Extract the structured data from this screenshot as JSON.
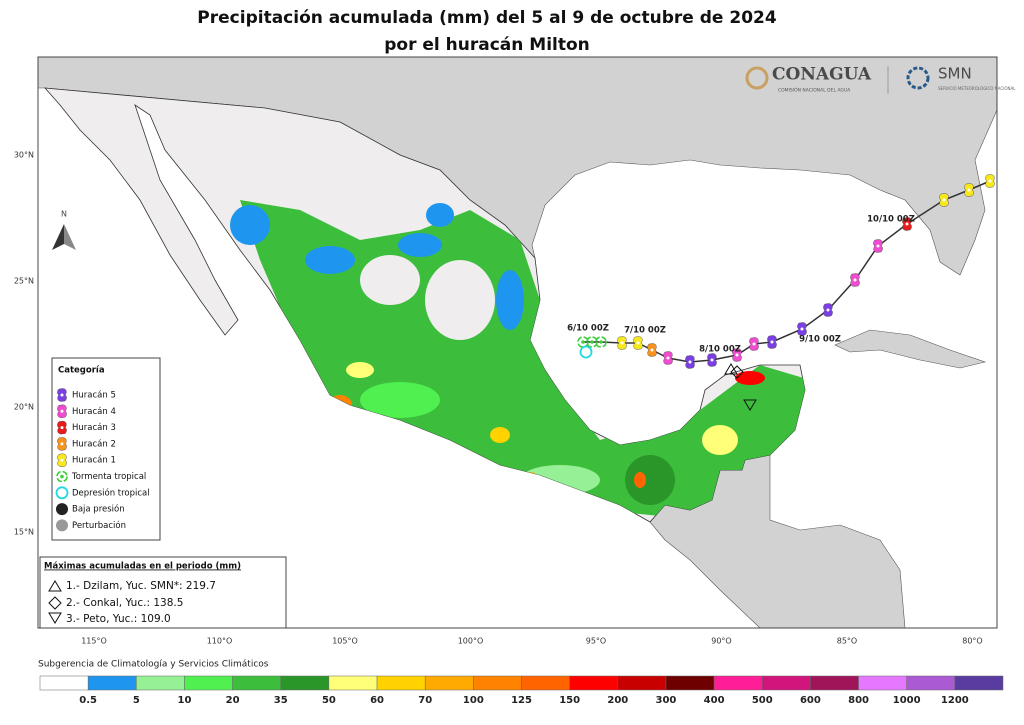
{
  "title": "Precipitación acumulada (mm) del 5 al 9 de octubre de 2024",
  "subtitle": "por el huracán Milton",
  "logos": {
    "conagua": "CONAGUA",
    "conagua_sub": "COMISIÓN NACIONAL DEL AGUA",
    "smn": "SMN",
    "smn_sub": "SERVICIO METEOROLÓGICO NACIONAL"
  },
  "map": {
    "north": "N",
    "lat_labels": [
      "30°N",
      "25°N",
      "20°N",
      "15°N"
    ],
    "lon_labels": [
      "115°O",
      "110°O",
      "105°O",
      "100°O",
      "95°O",
      "90°O",
      "85°O",
      "80°O"
    ],
    "track_labels": [
      "6/10 00Z",
      "7/10 00Z",
      "8/10 00Z",
      "9/10 00Z",
      "10/10 00Z"
    ]
  },
  "legend": {
    "title": "Categoría",
    "items": [
      {
        "label": "Huracán 5",
        "color": "#7b3fe4",
        "marker": "hurricane"
      },
      {
        "label": "Huracán 4",
        "color": "#f04ccf",
        "marker": "hurricane"
      },
      {
        "label": "Huracán 3",
        "color": "#e81c1c",
        "marker": "hurricane"
      },
      {
        "label": "Huracán 2",
        "color": "#f7931e",
        "marker": "hurricane"
      },
      {
        "label": "Huracán 1",
        "color": "#f7e81e",
        "marker": "hurricane"
      },
      {
        "label": "Tormenta tropical",
        "color": "#3ccf3c",
        "marker": "storm"
      },
      {
        "label": "Depresión tropical",
        "color": "#20d8e0",
        "marker": "ring"
      },
      {
        "label": "Baja presión",
        "color": "#222222",
        "marker": "dot"
      },
      {
        "label": "Perturbación",
        "color": "#999999",
        "marker": "dot"
      }
    ]
  },
  "maxima": {
    "title": "Máximas acumuladas en el periodo (mm)",
    "items": [
      "1.- Dzilam, Yuc. SMN*: 219.7",
      "2.- Conkal, Yuc.: 138.5",
      "3.- Peto, Yuc.: 109.0"
    ]
  },
  "footer": "Subgerencia de Climatología y Servicios Climáticos",
  "colorbar": {
    "colors": [
      "#ffffff",
      "#1e96f0",
      "#96f096",
      "#50f050",
      "#3cbe3c",
      "#2a962a",
      "#ffff78",
      "#ffd200",
      "#ffaa00",
      "#ff8200",
      "#ff6400",
      "#ff0000",
      "#c80000",
      "#6e0000",
      "#ff1e96",
      "#d2147d",
      "#a0145a",
      "#e678ff",
      "#aa5ad2",
      "#5a3ca0"
    ],
    "labels": [
      0.5,
      5,
      10,
      20,
      35,
      50,
      60,
      70,
      100,
      125,
      150,
      200,
      300,
      400,
      500,
      600,
      800,
      1000,
      1200
    ]
  }
}
